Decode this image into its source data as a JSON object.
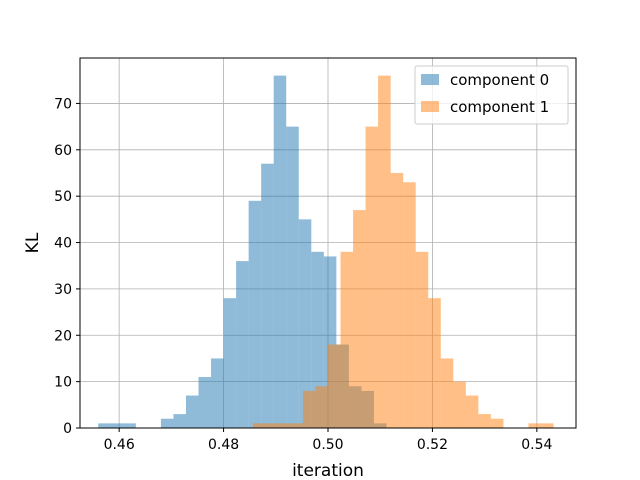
{
  "chart_data": {
    "type": "bar",
    "xlabel": "iteration",
    "ylabel": "KL",
    "xlim": [
      0.4525,
      0.5475
    ],
    "ylim": [
      0,
      79.8
    ],
    "xticks": [
      0.46,
      0.48,
      0.5,
      0.52,
      0.54
    ],
    "xtick_labels": [
      "0.46",
      "0.48",
      "0.50",
      "0.52",
      "0.54"
    ],
    "yticks": [
      0,
      10,
      20,
      30,
      40,
      50,
      60,
      70
    ],
    "ytick_labels": [
      "0",
      "10",
      "20",
      "30",
      "40",
      "50",
      "60",
      "70"
    ],
    "grid": true,
    "legend_position": "top-right",
    "series": [
      {
        "name": "component 0",
        "color": "#1f77b4",
        "alpha": 0.5,
        "bins": [
          0.456,
          0.4584,
          0.4608,
          0.4632,
          0.4656,
          0.468,
          0.4704,
          0.4728,
          0.4752,
          0.4776,
          0.48,
          0.4824,
          0.4848,
          0.4872,
          0.4896,
          0.492,
          0.4944,
          0.4968,
          0.4992,
          0.5016,
          0.504,
          0.5064,
          0.5088,
          0.5112
        ],
        "counts": [
          1,
          1,
          1,
          0,
          0,
          2,
          3,
          7,
          11,
          15,
          28,
          36,
          49,
          57,
          76,
          65,
          45,
          38,
          37,
          18,
          9,
          8,
          1
        ]
      },
      {
        "name": "component 1",
        "color": "#ff7f0e",
        "alpha": 0.5,
        "bins": [
          0.4856,
          0.488,
          0.4904,
          0.4928,
          0.4952,
          0.4976,
          0.5,
          0.5024,
          0.5048,
          0.5072,
          0.5096,
          0.512,
          0.5144,
          0.5168,
          0.5192,
          0.5216,
          0.524,
          0.5264,
          0.5288,
          0.5312,
          0.5336,
          0.536,
          0.5384,
          0.5408,
          0.5432
        ],
        "counts": [
          1,
          1,
          1,
          1,
          8,
          9,
          18,
          38,
          47,
          65,
          76,
          55,
          53,
          38,
          28,
          15,
          10,
          7,
          3,
          2,
          0,
          0,
          1,
          1
        ]
      }
    ]
  }
}
